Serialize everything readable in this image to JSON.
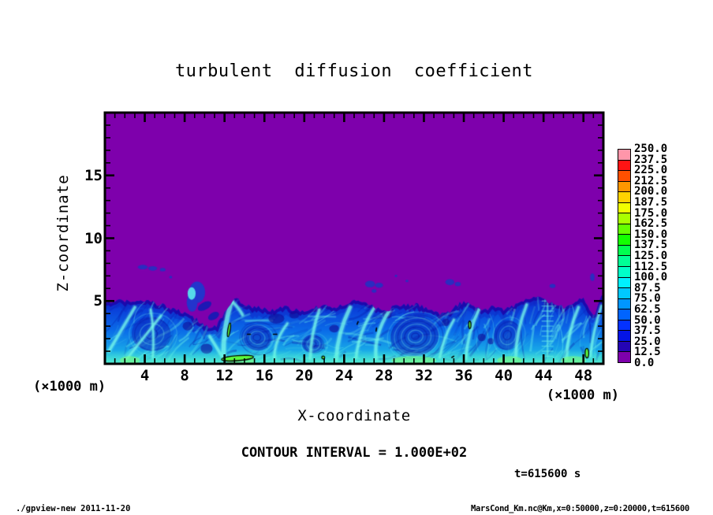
{
  "title": "turbulent diffusion coefficient",
  "axes": {
    "x_label": "X-coordinate",
    "x_unit": "(×1000 m)",
    "y_label": "Z-coordinate",
    "y_unit": "(×1000 m)",
    "x_major_ticks": [
      4,
      8,
      12,
      16,
      20,
      24,
      28,
      32,
      36,
      40,
      44,
      48
    ],
    "y_major_ticks": [
      5,
      10,
      15
    ],
    "x_minor_step": 1,
    "y_minor_step": 1
  },
  "annotations": {
    "contour_interval": "CONTOUR INTERVAL = 1.000E+02",
    "time_label": "t=615600 s"
  },
  "footer": {
    "left": "./gpview-new  2011-11-20",
    "right": "MarsCond_Km.nc@Km,x=0:50000,z=0:20000,t=615600"
  },
  "chart_data": {
    "type": "heatmap",
    "title": "turbulent diffusion coefficient",
    "xlabel": "X-coordinate (×1000 m)",
    "ylabel": "Z-coordinate (×1000 m)",
    "xlim": [
      0,
      50
    ],
    "ylim": [
      0,
      20
    ],
    "contour_interval": 100.0,
    "time": "t=615600 s",
    "colorbar_levels": [
      0,
      12.5,
      25,
      37.5,
      50,
      62.5,
      75,
      87.5,
      100,
      112.5,
      125,
      137.5,
      150,
      162.5,
      175,
      187.5,
      200,
      212.5,
      225,
      237.5,
      250
    ],
    "colorbar_colors_bottom_to_top": [
      "#7e00ac",
      "#2404b4",
      "#0414e6",
      "#0432ff",
      "#0064ff",
      "#0096ff",
      "#00c8ff",
      "#00f0ff",
      "#00ffc8",
      "#00ff96",
      "#00ff50",
      "#14ff00",
      "#64ff00",
      "#aaff00",
      "#f0ff00",
      "#ffd200",
      "#ff9600",
      "#ff5000",
      "#ff1414",
      "#ff96aa"
    ],
    "background_color": "#7e00ac",
    "field_description": "Uniform purple background (Km below 12.5) above a turbulent convective boundary layer (z about 0-5 km) filled with blue and cyan eddies, filaments and vortices; small bright-green Km~100 cores are outlined by black contour lines; a few detached dark-blue blobs float at z about 6-8 km",
    "seed": 20111120,
    "n_filaments": 300,
    "boundary_top": [
      4.9,
      5.0,
      5.0,
      5.0,
      5.0,
      4.8,
      4.6,
      4.3,
      4.0,
      3.6,
      3.1,
      2.9,
      4.0,
      5.2,
      4.7,
      4.5,
      4.4,
      4.2,
      4.5,
      4.3,
      4.1,
      4.4,
      4.6,
      4.4,
      4.7,
      5.1,
      4.8,
      4.5,
      4.2,
      4.5,
      4.6,
      4.7,
      4.5,
      4.2,
      3.9,
      4.4,
      4.9,
      4.6,
      4.3,
      4.5,
      4.3,
      4.6,
      5.0,
      5.3,
      5.1,
      4.8,
      4.5,
      4.9,
      5.2,
      3.9,
      5.5
    ],
    "vortices": [
      {
        "x": 31.1,
        "z": 2.2,
        "rx": 3.0,
        "rz": 2.0,
        "rings": 8,
        "rot": -0.12
      },
      {
        "x": 15.2,
        "z": 2.1,
        "rx": 1.9,
        "rz": 1.3,
        "rings": 5,
        "rot": 0.2
      },
      {
        "x": 20.8,
        "z": 1.6,
        "rx": 1.3,
        "rz": 0.9,
        "rings": 4,
        "rot": 0
      },
      {
        "x": 40.3,
        "z": 2.3,
        "rx": 1.6,
        "rz": 1.5,
        "rings": 4,
        "rot": 0.3
      },
      {
        "x": 4.6,
        "z": 2.4,
        "rx": 2.4,
        "rz": 1.7,
        "rings": 4,
        "rot": 0.05
      }
    ],
    "streaks": [
      {
        "x1": 11.9,
        "z1": 0.4,
        "x2": 12.7,
        "z2": 5.0,
        "w": 5,
        "bend": -0.5
      },
      {
        "x1": 12.7,
        "z1": 5.0,
        "x2": 13.8,
        "z2": 3.9,
        "w": 3,
        "bend": 0.2
      },
      {
        "x1": 11.9,
        "z1": 0.4,
        "x2": 10.5,
        "z2": 2.2,
        "w": 3,
        "bend": 0
      },
      {
        "x1": 23.2,
        "z1": 0.3,
        "x2": 24.6,
        "z2": 4.5,
        "w": 4,
        "bend": -0.6
      },
      {
        "x1": 20.6,
        "z1": 0.4,
        "x2": 21.5,
        "z2": 4.3,
        "w": 3,
        "bend": -0.4
      },
      {
        "x1": 25.2,
        "z1": 0.5,
        "x2": 27.3,
        "z2": 4.8,
        "w": 3,
        "bend": -0.8
      },
      {
        "x1": 27.2,
        "z1": 0.4,
        "x2": 28.5,
        "z2": 4.2,
        "w": 3.5,
        "bend": -0.9
      },
      {
        "x1": 0.4,
        "z1": 1.0,
        "x2": 3.0,
        "z2": 4.5,
        "w": 3,
        "bend": 0
      },
      {
        "x1": 2.2,
        "z1": 0.4,
        "x2": 5.6,
        "z2": 3.8,
        "w": 2.5,
        "bend": 0
      },
      {
        "x1": 4.8,
        "z1": 0.5,
        "x2": 4.6,
        "z2": 4.3,
        "w": 2.2,
        "bend": 0.3
      },
      {
        "x1": 36.2,
        "z1": 0.4,
        "x2": 37.5,
        "z2": 4.3,
        "w": 3,
        "bend": -0.5
      },
      {
        "x1": 33.6,
        "z1": 0.5,
        "x2": 35.0,
        "z2": 3.5,
        "w": 2.5,
        "bend": -0.4
      },
      {
        "x1": 41.2,
        "z1": 0.5,
        "x2": 42.3,
        "z2": 4.7,
        "w": 3,
        "bend": -0.5
      },
      {
        "x1": 46.3,
        "z1": 0.4,
        "x2": 47.5,
        "z2": 4.5,
        "w": 3,
        "bend": -0.5
      },
      {
        "x1": 48.7,
        "z1": 0.6,
        "x2": 49.8,
        "z2": 4.6,
        "w": 2.5,
        "bend": -0.3
      },
      {
        "x1": 17.0,
        "z1": 0.4,
        "x2": 18.3,
        "z2": 3.2,
        "w": 2.5,
        "bend": -0.7
      }
    ],
    "ribs": [
      {
        "x": 44.4,
        "z1": 0.6,
        "z2": 5.0,
        "n": 12,
        "dx": 0.55
      }
    ],
    "blobs": [
      {
        "x": 3.8,
        "z": 7.7,
        "rx": 0.5,
        "rz": 0.18
      },
      {
        "x": 4.8,
        "z": 7.6,
        "rx": 0.45,
        "rz": 0.18
      },
      {
        "x": 5.8,
        "z": 7.5,
        "rx": 0.28,
        "rz": 0.14
      },
      {
        "x": 6.6,
        "z": 6.9,
        "rx": 0.15,
        "rz": 0.1
      },
      {
        "x": 9.25,
        "z": 5.7,
        "rx": 0.8,
        "rz": 0.85,
        "c": "#2334cc"
      },
      {
        "x": 8.75,
        "z": 4.9,
        "rx": 0.55,
        "rz": 0.75,
        "c": "#2334cc"
      },
      {
        "x": 8.7,
        "z": 5.6,
        "rx": 0.4,
        "rz": 0.5,
        "c": "#55d8ea"
      },
      {
        "x": 10.0,
        "z": 4.6,
        "rx": 0.75,
        "rz": 0.3,
        "rot": -0.5,
        "c": "#1c18b4"
      },
      {
        "x": 10.9,
        "z": 3.8,
        "rx": 0.6,
        "rz": 0.28,
        "rot": -0.5,
        "c": "#1c18b4"
      },
      {
        "x": 26.6,
        "z": 6.35,
        "rx": 0.5,
        "rz": 0.26
      },
      {
        "x": 27.5,
        "z": 6.25,
        "rx": 0.4,
        "rz": 0.2
      },
      {
        "x": 27.0,
        "z": 5.8,
        "rx": 0.24,
        "rz": 0.14
      },
      {
        "x": 29.2,
        "z": 7.0,
        "rx": 0.12,
        "rz": 0.1
      },
      {
        "x": 30.3,
        "z": 6.6,
        "rx": 0.15,
        "rz": 0.1
      },
      {
        "x": 34.6,
        "z": 6.5,
        "rx": 0.45,
        "rz": 0.24
      },
      {
        "x": 35.4,
        "z": 6.35,
        "rx": 0.3,
        "rz": 0.17
      },
      {
        "x": 44.9,
        "z": 6.2,
        "rx": 0.3,
        "rz": 0.17
      },
      {
        "x": 48.9,
        "z": 6.9,
        "rx": 0.22,
        "rz": 0.3
      }
    ],
    "dark_spots": [
      {
        "x": 37.8,
        "z": 2.1,
        "rx": 0.4,
        "rz": 0.3
      },
      {
        "x": 38.7,
        "z": 1.8,
        "rx": 0.3,
        "rz": 0.25
      },
      {
        "x": 17.2,
        "z": 3.6,
        "rx": 0.8,
        "rz": 0.4
      },
      {
        "x": 19.0,
        "z": 3.9,
        "rx": 0.5,
        "rz": 0.3
      },
      {
        "x": 8.3,
        "z": 3.0,
        "rx": 0.5,
        "rz": 0.35
      },
      {
        "x": 10.2,
        "z": 1.2,
        "rx": 0.6,
        "rz": 0.4
      },
      {
        "x": 28.3,
        "z": 3.9,
        "rx": 0.45,
        "rz": 0.3
      },
      {
        "x": 34.2,
        "z": 3.3,
        "rx": 0.4,
        "rz": 0.3
      },
      {
        "x": 23.0,
        "z": 2.8,
        "rx": 0.5,
        "rz": 0.3
      }
    ],
    "green_glow": [
      {
        "x": 2.5,
        "w": 2
      },
      {
        "x": 13.6,
        "w": 3
      },
      {
        "x": 31.0,
        "w": 4.5
      },
      {
        "x": 40.6,
        "w": 2.5
      },
      {
        "x": 47.0,
        "w": 2.5
      }
    ],
    "green_spots": [
      {
        "x": 12.45,
        "z": 2.7,
        "rx": 0.12,
        "rz": 0.55,
        "rot": 0.15
      },
      {
        "x": 13.3,
        "z": 0.45,
        "rx": 1.6,
        "rz": 0.2,
        "rot": -0.08
      },
      {
        "x": 48.35,
        "z": 0.85,
        "rx": 0.18,
        "rz": 0.38,
        "rot": 0
      },
      {
        "x": 36.6,
        "z": 3.1,
        "rx": 0.07,
        "rz": 0.3,
        "rot": 0
      },
      {
        "x": 21.9,
        "z": 0.5,
        "rx": 0.14,
        "rz": 0.12,
        "rot": 0
      }
    ],
    "contour_marks": [
      {
        "x": 14.3,
        "z": 2.35,
        "dx": 0.3,
        "dz": 0
      },
      {
        "x": 16.9,
        "z": 2.35,
        "dx": 0.35,
        "dz": 0
      },
      {
        "x": 27.2,
        "z": 2.6,
        "dx": 0.05,
        "dz": 0.25
      },
      {
        "x": 25.3,
        "z": 3.15,
        "dx": 0.1,
        "dz": 0.2
      },
      {
        "x": 34.8,
        "z": 0.5,
        "dx": 0.2,
        "dz": 0.1
      }
    ]
  }
}
